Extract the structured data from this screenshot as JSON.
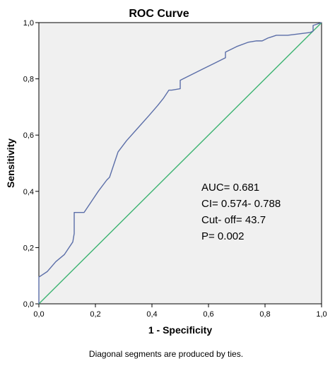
{
  "chart_data": {
    "type": "line",
    "title": "ROC Curve",
    "xlabel": "1 - Specificity",
    "ylabel": "Sensitivity",
    "xlim": [
      0,
      1
    ],
    "ylim": [
      0,
      1
    ],
    "x_ticks": [
      "0,0",
      "0,2",
      "0,4",
      "0,6",
      "0,8",
      "1,0"
    ],
    "y_ticks": [
      "0,0",
      "0,2",
      "0,4",
      "0,6",
      "0,8",
      "1,0"
    ],
    "grid": false,
    "series": [
      {
        "color": "#5b6ea8",
        "x": [
          0.0,
          0.0,
          0.03,
          0.06,
          0.09,
          0.1,
          0.12,
          0.125,
          0.125,
          0.16,
          0.19,
          0.21,
          0.24,
          0.25,
          0.27,
          0.28,
          0.31,
          0.35,
          0.39,
          0.42,
          0.44,
          0.46,
          0.47,
          0.5,
          0.5,
          0.54,
          0.58,
          0.62,
          0.66,
          0.66,
          0.7,
          0.74,
          0.77,
          0.79,
          0.8,
          0.81,
          0.84,
          0.88,
          0.92,
          0.96,
          0.97,
          0.97,
          1.0
        ],
        "y": [
          0.0,
          0.095,
          0.115,
          0.15,
          0.175,
          0.19,
          0.22,
          0.25,
          0.325,
          0.325,
          0.37,
          0.4,
          0.44,
          0.45,
          0.51,
          0.54,
          0.58,
          0.625,
          0.67,
          0.705,
          0.73,
          0.76,
          0.76,
          0.765,
          0.795,
          0.815,
          0.835,
          0.855,
          0.875,
          0.895,
          0.915,
          0.93,
          0.935,
          0.935,
          0.94,
          0.945,
          0.955,
          0.955,
          0.96,
          0.965,
          0.97,
          0.99,
          1.0
        ]
      },
      {
        "color": "#3cb371",
        "x": [
          0,
          1
        ],
        "y": [
          0,
          1
        ]
      }
    ],
    "annotations": [
      "AUC= 0.681",
      "CI= 0.574- 0.788",
      "Cut- off= 43.7",
      "P= 0.002"
    ]
  },
  "footnote": "Diagonal segments are produced by ties."
}
